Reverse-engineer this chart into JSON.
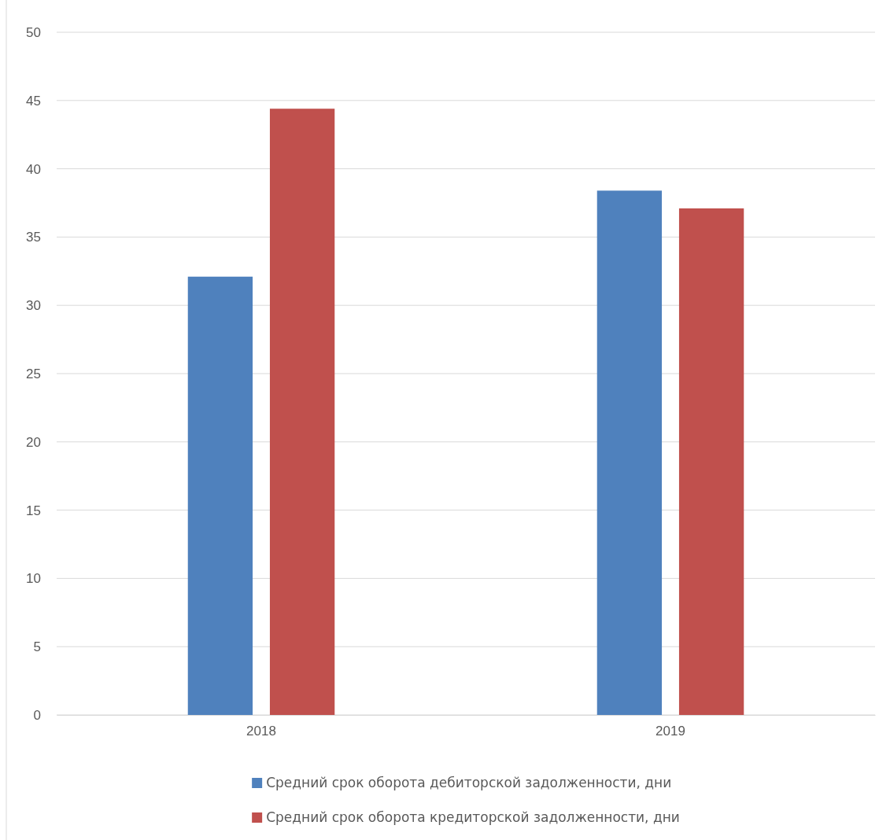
{
  "chart_data": {
    "type": "bar",
    "categories": [
      "2018",
      "2019"
    ],
    "series": [
      {
        "name": "Средний срок оборота дебиторской задолженности, дни",
        "color": "#4f81bd",
        "values": [
          32.1,
          38.4
        ]
      },
      {
        "name": "Средний срок оборота кредиторской задолженности, дни",
        "color": "#c0504d",
        "values": [
          44.4,
          37.1
        ]
      }
    ],
    "ylim": [
      0,
      50
    ],
    "yticks": [
      0,
      5,
      10,
      15,
      20,
      25,
      30,
      35,
      40,
      45,
      50
    ],
    "grid": "y",
    "legend": "bottom"
  }
}
